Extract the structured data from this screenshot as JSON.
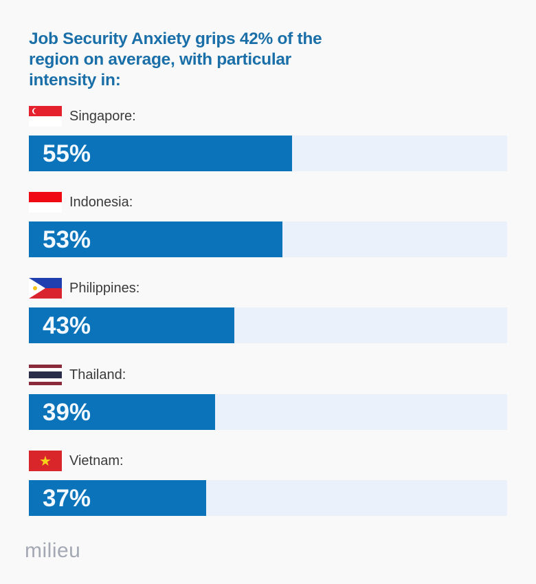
{
  "title": "Job Security Anxiety grips 42% of the region on average, with particular intensity in:",
  "logo": "milieu",
  "colors": {
    "bar": "#0a73ba",
    "track": "#ebf1fb",
    "title": "#1a6fa8"
  },
  "rows": [
    {
      "country": "Singapore:",
      "value": 55,
      "label": "55%",
      "flag": "singapore-flag"
    },
    {
      "country": "Indonesia:",
      "value": 53,
      "label": "53%",
      "flag": "indonesia-flag"
    },
    {
      "country": "Philippines:",
      "value": 43,
      "label": "43%",
      "flag": "philippines-flag"
    },
    {
      "country": "Thailand:",
      "value": 39,
      "label": "39%",
      "flag": "thailand-flag"
    },
    {
      "country": "Vietnam:",
      "value": 37,
      "label": "37%",
      "flag": "vietnam-flag"
    }
  ],
  "chart_data": {
    "type": "bar",
    "orientation": "horizontal",
    "title": "Job Security Anxiety grips 42% of the region on average, with particular intensity in:",
    "categories": [
      "Singapore",
      "Indonesia",
      "Philippines",
      "Thailand",
      "Vietnam"
    ],
    "values": [
      55,
      53,
      43,
      39,
      37
    ],
    "unit": "%",
    "xlim": [
      0,
      100
    ],
    "regional_average": 42,
    "grid": false,
    "legend": null,
    "source_logo": "milieu"
  }
}
